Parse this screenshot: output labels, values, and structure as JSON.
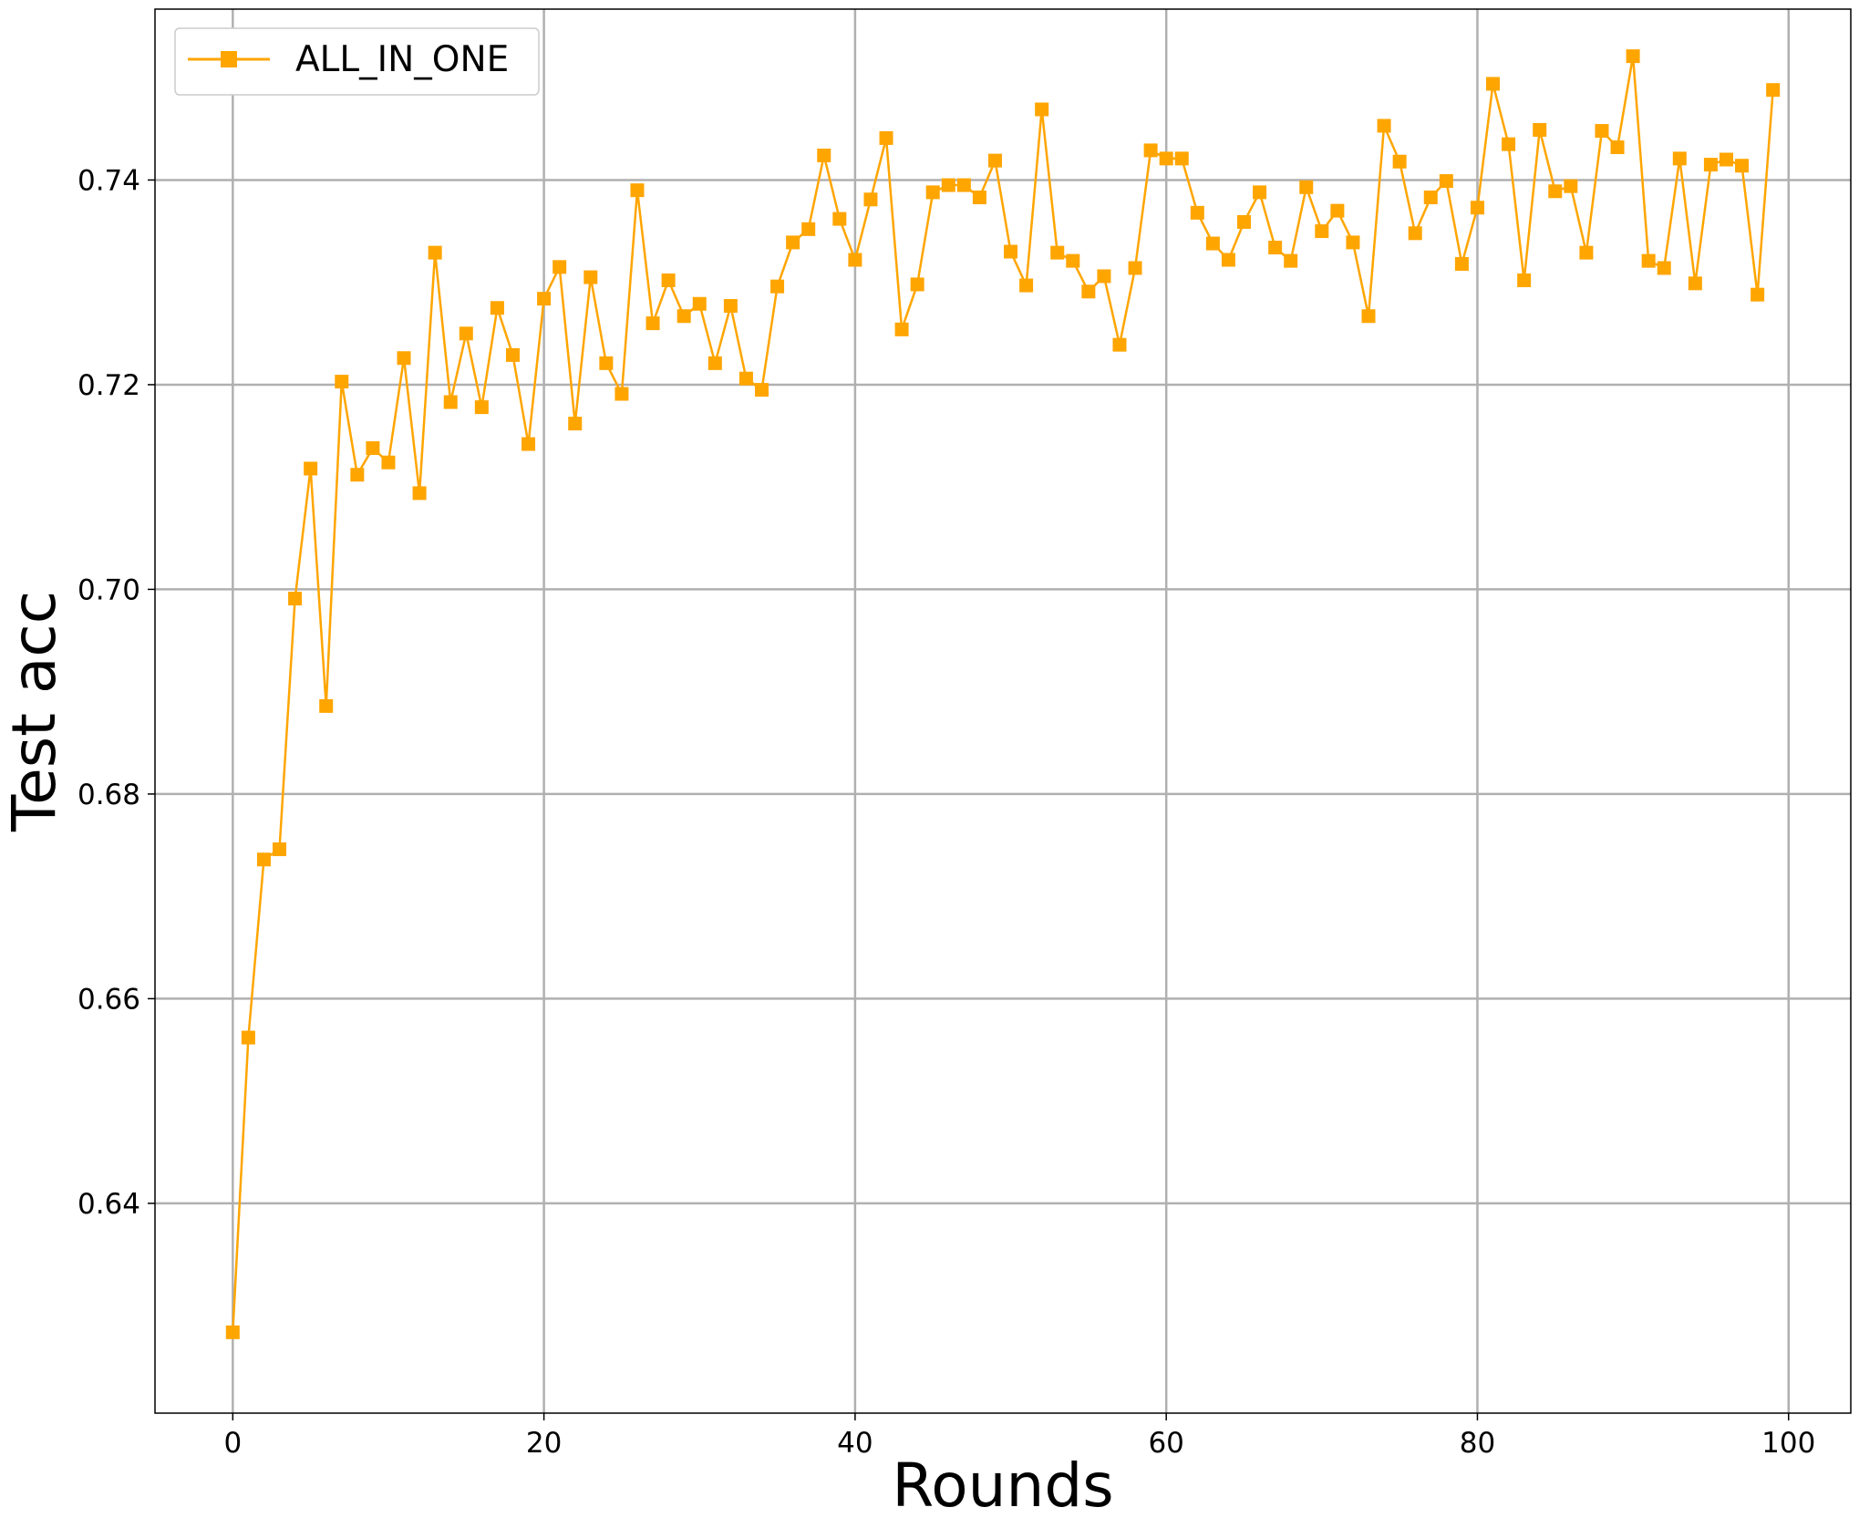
{
  "chart_data": {
    "type": "line",
    "title": "",
    "xlabel": "Rounds",
    "ylabel": "Test acc",
    "xlim": [
      -5,
      104
    ],
    "ylim": [
      0.6195,
      0.7567
    ],
    "xticks": [
      0,
      20,
      40,
      60,
      80,
      100
    ],
    "xtick_labels": [
      "0",
      "20",
      "40",
      "60",
      "80",
      "100"
    ],
    "yticks": [
      0.64,
      0.66,
      0.68,
      0.7,
      0.72,
      0.74
    ],
    "ytick_labels": [
      "0.64",
      "0.66",
      "0.68",
      "0.70",
      "0.72",
      "0.74"
    ],
    "grid": true,
    "legend_position": "top-left",
    "series": [
      {
        "name": "ALL_IN_ONE",
        "color": "#ffa500",
        "marker": "square",
        "x": [
          0,
          1,
          2,
          3,
          4,
          5,
          6,
          7,
          8,
          9,
          10,
          11,
          12,
          13,
          14,
          15,
          16,
          17,
          18,
          19,
          20,
          21,
          22,
          23,
          24,
          25,
          26,
          27,
          28,
          29,
          30,
          31,
          32,
          33,
          34,
          35,
          36,
          37,
          38,
          39,
          40,
          41,
          42,
          43,
          44,
          45,
          46,
          47,
          48,
          49,
          50,
          51,
          52,
          53,
          54,
          55,
          56,
          57,
          58,
          59,
          60,
          61,
          62,
          63,
          64,
          65,
          66,
          67,
          68,
          69,
          70,
          71,
          72,
          73,
          74,
          75,
          76,
          77,
          78,
          79,
          80,
          81,
          82,
          83,
          84,
          85,
          86,
          87,
          88,
          89,
          90,
          91,
          92,
          93,
          94,
          95,
          96,
          97,
          98,
          99
        ],
        "values": [
          0.6274,
          0.6562,
          0.6736,
          0.6746,
          0.6991,
          0.7118,
          0.6886,
          0.7203,
          0.7112,
          0.7138,
          0.7124,
          0.7226,
          0.7094,
          0.7329,
          0.7183,
          0.725,
          0.7178,
          0.7275,
          0.7229,
          0.7142,
          0.7284,
          0.7315,
          0.7162,
          0.7305,
          0.7221,
          0.7191,
          0.739,
          0.726,
          0.7302,
          0.7267,
          0.7279,
          0.7221,
          0.7277,
          0.7206,
          0.7195,
          0.7296,
          0.7339,
          0.7352,
          0.7424,
          0.7362,
          0.7322,
          0.7381,
          0.7441,
          0.7254,
          0.7298,
          0.7388,
          0.7395,
          0.7395,
          0.7383,
          0.7419,
          0.733,
          0.7297,
          0.7469,
          0.7329,
          0.7321,
          0.7291,
          0.7306,
          0.7239,
          0.7314,
          0.7429,
          0.7421,
          0.7421,
          0.7368,
          0.7338,
          0.7322,
          0.7359,
          0.7388,
          0.7334,
          0.7321,
          0.7393,
          0.735,
          0.737,
          0.7339,
          0.7267,
          0.7453,
          0.7418,
          0.7348,
          0.7383,
          0.7399,
          0.7318,
          0.7373,
          0.7494,
          0.7435,
          0.7302,
          0.7449,
          0.7389,
          0.7394,
          0.7329,
          0.7448,
          0.7432,
          0.7521,
          0.7321,
          0.7314,
          0.7421,
          0.7299,
          0.7415,
          0.742,
          0.7414,
          0.7288,
          0.7488
        ]
      }
    ]
  }
}
